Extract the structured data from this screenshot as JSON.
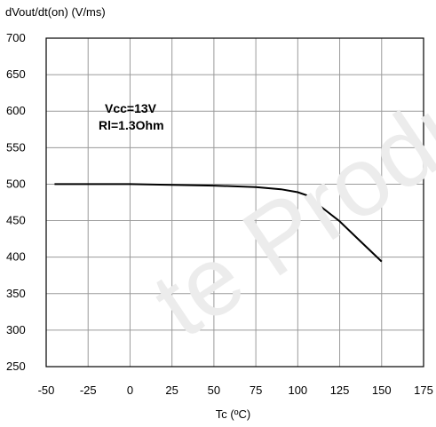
{
  "chart_data": {
    "type": "line",
    "ylabel": "dVout/dt(on) (V/ms)",
    "xlabel": "Tc (ºC)",
    "xlim": [
      -50,
      175
    ],
    "ylim": [
      250,
      700
    ],
    "xticks": [
      -50,
      -25,
      0,
      25,
      50,
      75,
      100,
      125,
      150,
      175
    ],
    "yticks": [
      250,
      300,
      350,
      400,
      450,
      500,
      550,
      600,
      650,
      700
    ],
    "grid": true,
    "annotations": [
      "Vcc=13V",
      "Rl=1.3Ohm"
    ],
    "series": [
      {
        "x": [
          -45,
          -25,
          0,
          25,
          50,
          75,
          90,
          100,
          105,
          115,
          125,
          135,
          150
        ],
        "y": [
          500,
          500,
          500,
          499,
          498,
          496,
          493,
          489,
          485,
          467,
          449,
          427,
          394
        ]
      }
    ]
  },
  "watermark": "te Product(s)"
}
